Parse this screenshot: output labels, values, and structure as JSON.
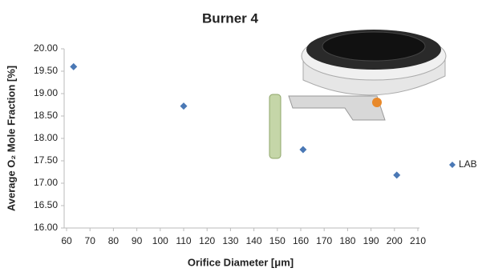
{
  "chart_data": {
    "type": "scatter",
    "title": "Burner 4",
    "xlabel": "Orifice Diameter [μm]",
    "ylabel": "Average O₂ Mole Fraction [%]",
    "series": [
      {
        "name": "LAB",
        "color": "#4a78b5",
        "x": [
          63,
          110,
          161,
          201
        ],
        "values": [
          19.6,
          18.72,
          17.75,
          17.18
        ]
      }
    ],
    "xlim": [
      60,
      210
    ],
    "xticks": [
      60,
      70,
      80,
      90,
      100,
      110,
      120,
      130,
      140,
      150,
      160,
      170,
      180,
      190,
      200,
      210
    ],
    "ylim": [
      16,
      20
    ],
    "yticks": [
      {
        "value": 16,
        "label": "16.00"
      },
      {
        "value": 16.5,
        "label": "16.50"
      },
      {
        "value": 17,
        "label": "17.00"
      },
      {
        "value": 17.5,
        "label": "17.50"
      },
      {
        "value": 18,
        "label": "18.00"
      },
      {
        "value": 18.5,
        "label": "18.50"
      },
      {
        "value": 19,
        "label": "19.00"
      },
      {
        "value": 19.5,
        "label": "19.50"
      },
      {
        "value": 20,
        "label": "20.00"
      }
    ],
    "legend": "right",
    "grid": false
  }
}
